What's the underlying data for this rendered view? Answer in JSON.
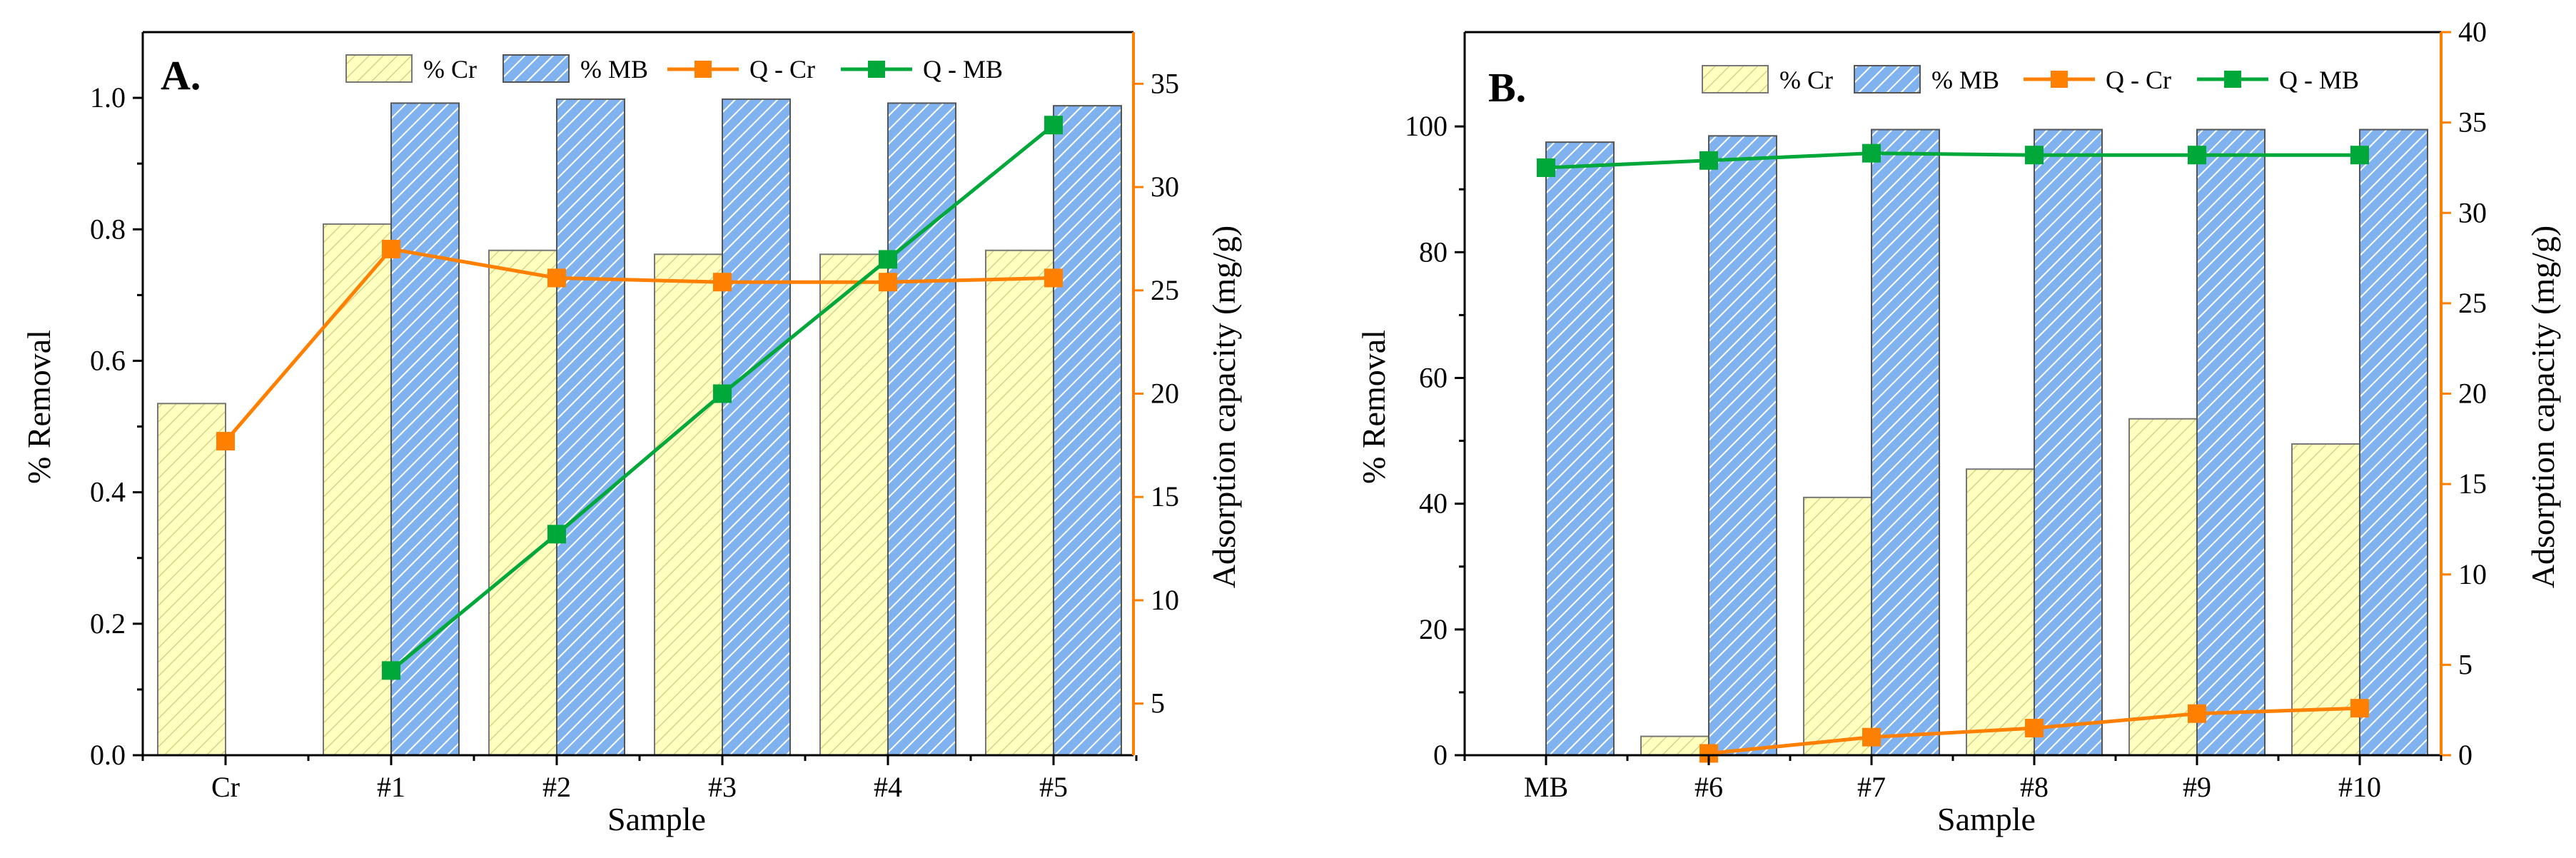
{
  "chart_data": [
    {
      "panel": "A.",
      "type": "bar+line",
      "categories": [
        "Cr",
        "#1",
        "#2",
        "#3",
        "#4",
        "#5"
      ],
      "xlabel": "Sample",
      "ylabel": "% Removal",
      "y2label": "Adsorption capacity (mg/g)",
      "ylim": [
        0,
        1.1
      ],
      "yticks": [
        "0.0",
        "0.2",
        "0.4",
        "0.6",
        "0.8",
        "1.0"
      ],
      "ytick_values": [
        0,
        0.2,
        0.4,
        0.6,
        0.8,
        1.0
      ],
      "y2lim": [
        2.5,
        37.5
      ],
      "y2ticks": [
        "5",
        "10",
        "15",
        "20",
        "25",
        "30",
        "35"
      ],
      "y2tick_values": [
        5,
        10,
        15,
        20,
        25,
        30,
        35
      ],
      "series": [
        {
          "name": "% Cr",
          "kind": "bar",
          "axis": "left",
          "values": [
            0.535,
            0.808,
            0.768,
            0.762,
            0.762,
            0.768
          ]
        },
        {
          "name": "% MB",
          "kind": "bar",
          "axis": "left",
          "values": [
            null,
            0.992,
            0.998,
            0.998,
            0.992,
            0.988
          ]
        },
        {
          "name": "Q - Cr",
          "kind": "line",
          "axis": "right",
          "values": [
            17.7,
            27.0,
            25.6,
            25.4,
            25.4,
            25.6
          ]
        },
        {
          "name": "Q - MB",
          "kind": "line",
          "axis": "right",
          "values": [
            null,
            6.6,
            13.2,
            20.0,
            26.5,
            33.0
          ]
        }
      ]
    },
    {
      "panel": "B.",
      "type": "bar+line",
      "categories": [
        "MB",
        "#6",
        "#7",
        "#8",
        "#9",
        "#10"
      ],
      "xlabel": "Sample",
      "ylabel": "% Removal",
      "y2label": "Adsorption capacity (mg/g)",
      "ylim": [
        0,
        115
      ],
      "yticks": [
        "0",
        "20",
        "40",
        "60",
        "80",
        "100"
      ],
      "ytick_values": [
        0,
        20,
        40,
        60,
        80,
        100
      ],
      "y2lim": [
        0,
        40
      ],
      "y2ticks": [
        "0",
        "5",
        "10",
        "15",
        "20",
        "25",
        "30",
        "35",
        "40"
      ],
      "y2tick_values": [
        0,
        5,
        10,
        15,
        20,
        25,
        30,
        35,
        40
      ],
      "series": [
        {
          "name": "% Cr",
          "kind": "bar",
          "axis": "left",
          "values": [
            null,
            3.0,
            41.0,
            45.5,
            53.5,
            49.5
          ]
        },
        {
          "name": "% MB",
          "kind": "bar",
          "axis": "left",
          "values": [
            97.5,
            98.5,
            99.5,
            99.5,
            99.5,
            99.5
          ]
        },
        {
          "name": "Q - Cr",
          "kind": "line",
          "axis": "right",
          "values": [
            null,
            0.1,
            1.0,
            1.5,
            2.3,
            2.6
          ]
        },
        {
          "name": "Q - MB",
          "kind": "line",
          "axis": "right",
          "values": [
            32.5,
            32.9,
            33.3,
            33.2,
            33.2,
            33.2
          ]
        }
      ]
    }
  ],
  "colors": {
    "cr_bar": "#ffffc0",
    "mb_bar": "#7fb2ee",
    "q_cr": "#ff7f00",
    "q_mb": "#00a83a",
    "right_axis": "#ff7f00"
  }
}
